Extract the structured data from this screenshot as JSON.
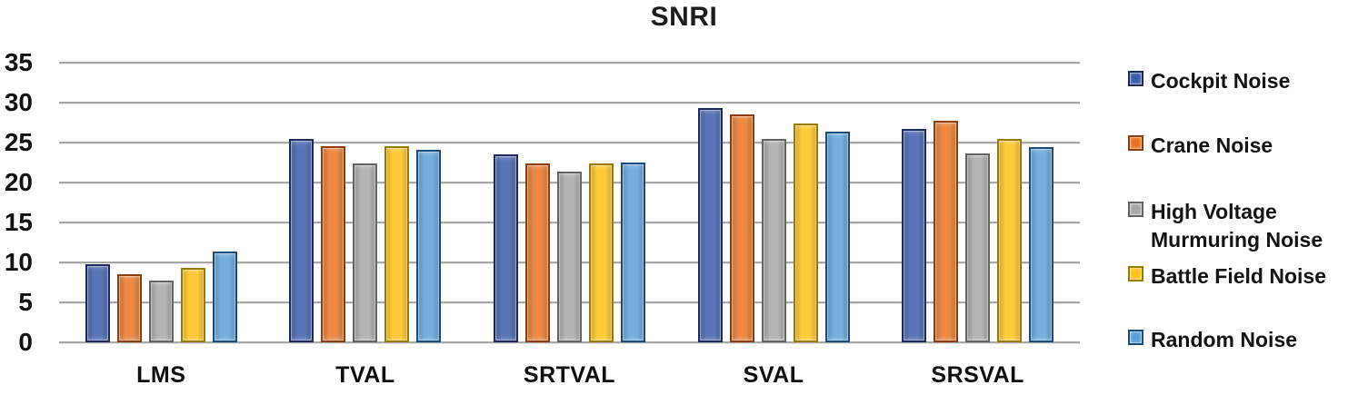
{
  "chart_data": {
    "type": "bar",
    "title": "SNRI",
    "categories": [
      "LMS",
      "TVAL",
      "SRTVAL",
      "SVAL",
      "SRSVAL"
    ],
    "series": [
      {
        "name": "Cockpit Noise",
        "color": "#3A5BA9",
        "border": "#1E2A5C",
        "values": [
          9.8,
          25.4,
          23.5,
          29.3,
          26.7
        ]
      },
      {
        "name": "Crane Noise",
        "color": "#E8721F",
        "border": "#8E3D0E",
        "values": [
          8.5,
          24.6,
          22.4,
          28.5,
          27.7
        ]
      },
      {
        "name": "High Voltage Murmuring Noise",
        "color": "#A6A6A6",
        "border": "#636363",
        "values": [
          7.7,
          22.4,
          21.4,
          25.4,
          23.6
        ]
      },
      {
        "name": "Battle Field Noise",
        "color": "#FFC113",
        "border": "#9A7B00",
        "values": [
          9.3,
          24.6,
          22.4,
          27.4,
          25.4
        ]
      },
      {
        "name": "Random Noise",
        "color": "#589FD9",
        "border": "#1A4E79",
        "values": [
          11.4,
          24.1,
          22.5,
          26.4,
          24.4
        ]
      }
    ],
    "ylim": [
      0,
      35
    ],
    "yticks": [
      0,
      5,
      10,
      15,
      20,
      25,
      30,
      35
    ],
    "grid": true,
    "legend_position": "right",
    "gridline_color": "#A8A8A8"
  }
}
